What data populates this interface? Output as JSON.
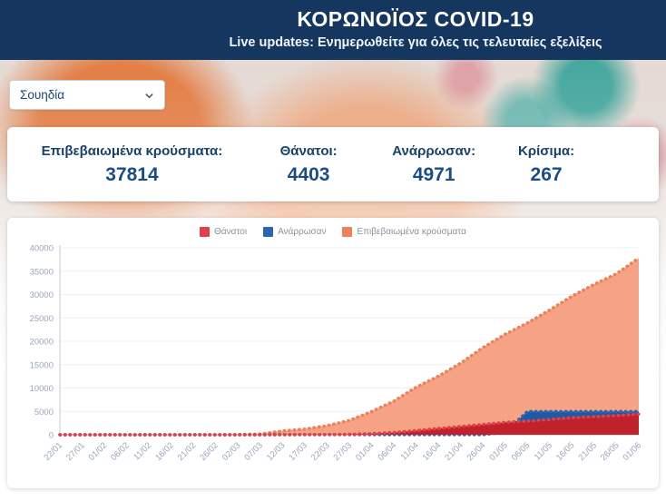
{
  "header": {
    "title": "ΚΟΡΩΝΟΪΟΣ COVID-19",
    "live_label": "Live updates:",
    "subtitle": "Ενημερωθείτε για όλες τις τελευταίες εξελίξεις"
  },
  "country_select": {
    "value": "Σουηδία"
  },
  "stats": [
    {
      "label": "Επιβεβαιωμένα κρούσματα:",
      "value": "37814"
    },
    {
      "label": "Θάνατοι:",
      "value": "4403"
    },
    {
      "label": "Ανάρρωσαν:",
      "value": "4971"
    },
    {
      "label": "Κρίσιμα:",
      "value": "267"
    }
  ],
  "colors": {
    "header_navy": "#15365f",
    "text_navy": "#17426f",
    "deaths_red": "#e04048",
    "recovered_blue": "#2a66b0",
    "confirmed_orange": "#ef8059"
  },
  "chart_data": {
    "type": "area",
    "title": "",
    "xlabel": "",
    "ylabel": "",
    "ylim": [
      0,
      40000
    ],
    "yticks": [
      0,
      5000,
      10000,
      15000,
      20000,
      25000,
      30000,
      35000,
      40000
    ],
    "grid": true,
    "legend_position": "top",
    "x": [
      "22/01",
      "27/01",
      "01/02",
      "06/02",
      "11/02",
      "16/02",
      "21/02",
      "26/02",
      "02/03",
      "07/03",
      "12/03",
      "17/03",
      "22/03",
      "27/03",
      "01/04",
      "06/04",
      "11/04",
      "16/04",
      "21/04",
      "26/04",
      "01/05",
      "06/05",
      "11/05",
      "16/05",
      "21/05",
      "26/05",
      "01/06"
    ],
    "series": [
      {
        "name": "Θάνατοι",
        "color": "#e04048",
        "fill": "#c0212b",
        "values": [
          0,
          0,
          0,
          0,
          0,
          0,
          0,
          0,
          0,
          1,
          1,
          10,
          21,
          105,
          239,
          477,
          887,
          1333,
          1765,
          2194,
          2653,
          2941,
          3256,
          3646,
          3871,
          4125,
          4403
        ]
      },
      {
        "name": "Ανάρρωσαν",
        "color": "#2a66b0",
        "fill": "#1e59a4",
        "values": [
          0,
          0,
          0,
          0,
          0,
          0,
          0,
          0,
          0,
          1,
          16,
          16,
          16,
          16,
          16,
          16,
          16,
          16,
          16,
          16,
          550,
          4971,
          4971,
          4971,
          4971,
          4971,
          4971
        ]
      },
      {
        "name": "Επιβεβαιωμένα κρούσματα",
        "color": "#ef8059",
        "fill": "#f5a285",
        "values": [
          0,
          0,
          1,
          1,
          1,
          1,
          1,
          2,
          14,
          161,
          814,
          1196,
          1934,
          3069,
          4947,
          7206,
          10151,
          12540,
          15322,
          18640,
          21520,
          23918,
          26670,
          29677,
          32172,
          34440,
          37814
        ]
      }
    ],
    "draw_order": [
      2,
      1,
      0
    ]
  }
}
